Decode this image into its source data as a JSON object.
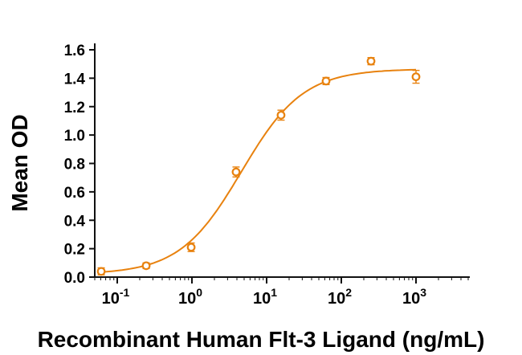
{
  "chart_data": {
    "type": "scatter",
    "title": "",
    "xlabel": "Recombinant Human Flt-3 Ligand (ng/mL)",
    "ylabel": "Mean OD",
    "xscale": "log10",
    "x": [
      0.061,
      0.244,
      0.977,
      3.9,
      15.6,
      62.5,
      250,
      1000
    ],
    "y": [
      0.04,
      0.08,
      0.21,
      0.74,
      1.14,
      1.38,
      1.52,
      1.41
    ],
    "yerr": [
      0.025,
      0.02,
      0.03,
      0.035,
      0.035,
      0.025,
      0.025,
      0.045
    ],
    "ylim": [
      0,
      1.6
    ],
    "yticks": [
      0,
      0.2,
      0.4,
      0.6,
      0.8,
      1.0,
      1.2,
      1.4,
      1.6
    ],
    "xtick_exponents": [
      -1,
      0,
      1,
      2,
      3
    ],
    "fit": {
      "model": "4PL",
      "bottom": 0.02,
      "top": 1.465,
      "ec50": 4.6,
      "hill": 1.05
    },
    "colors": {
      "series": "#E8820F",
      "axis": "#111111",
      "text": "#000000"
    },
    "grid": false,
    "legend": null
  }
}
